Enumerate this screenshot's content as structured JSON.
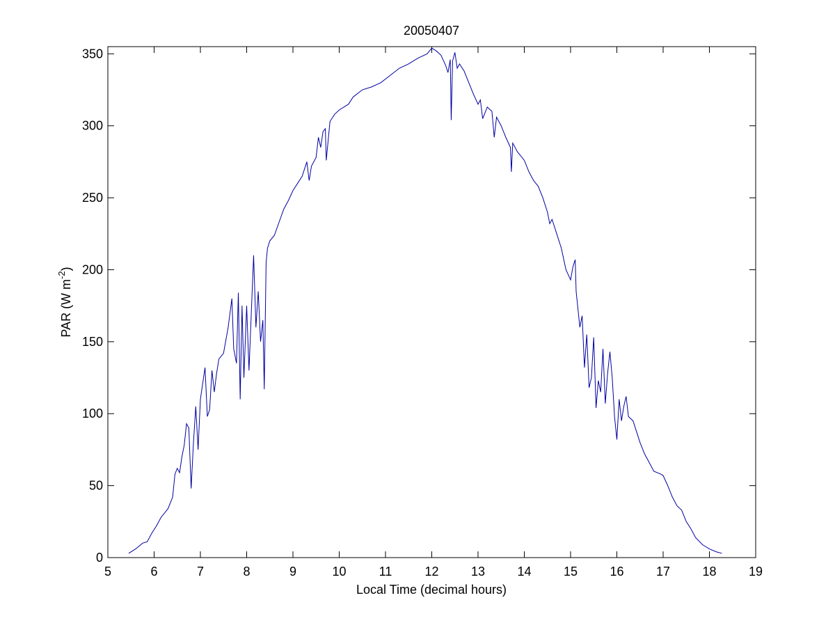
{
  "chart_data": {
    "type": "line",
    "title": "20050407",
    "xlabel": "Local Time (decimal hours)",
    "ylabel": {
      "text": "PAR (W m",
      "superscript": "-2",
      "suffix": ")"
    },
    "x": [
      5.45,
      5.6,
      5.75,
      5.85,
      5.95,
      6.05,
      6.15,
      6.3,
      6.4,
      6.45,
      6.5,
      6.55,
      6.6,
      6.65,
      6.7,
      6.75,
      6.8,
      6.85,
      6.9,
      6.95,
      7.0,
      7.1,
      7.15,
      7.2,
      7.25,
      7.3,
      7.35,
      7.4,
      7.5,
      7.6,
      7.68,
      7.72,
      7.78,
      7.82,
      7.86,
      7.9,
      7.94,
      8.0,
      8.05,
      8.1,
      8.15,
      8.2,
      8.25,
      8.3,
      8.35,
      8.38,
      8.42,
      8.45,
      8.5,
      8.6,
      8.7,
      8.8,
      8.9,
      9.0,
      9.1,
      9.2,
      9.3,
      9.35,
      9.4,
      9.5,
      9.55,
      9.6,
      9.65,
      9.7,
      9.72,
      9.8,
      9.9,
      10.0,
      10.2,
      10.3,
      10.5,
      10.7,
      10.9,
      11.1,
      11.3,
      11.5,
      11.7,
      11.9,
      12.0,
      12.1,
      12.2,
      12.3,
      12.35,
      12.4,
      12.42,
      12.45,
      12.5,
      12.55,
      12.6,
      12.7,
      12.8,
      12.9,
      13.0,
      13.05,
      13.1,
      13.2,
      13.3,
      13.35,
      13.4,
      13.5,
      13.6,
      13.7,
      13.72,
      13.75,
      13.85,
      14.0,
      14.1,
      14.2,
      14.3,
      14.4,
      14.5,
      14.55,
      14.6,
      14.7,
      14.8,
      14.9,
      15.0,
      15.05,
      15.1,
      15.12,
      15.2,
      15.25,
      15.3,
      15.35,
      15.4,
      15.45,
      15.5,
      15.55,
      15.6,
      15.65,
      15.7,
      15.75,
      15.8,
      15.85,
      15.9,
      15.95,
      16.0,
      16.05,
      16.1,
      16.15,
      16.2,
      16.25,
      16.35,
      16.5,
      16.6,
      16.7,
      16.8,
      16.95,
      17.0,
      17.1,
      17.2,
      17.3,
      17.4,
      17.5,
      17.6,
      17.7,
      17.85,
      18.0,
      18.15,
      18.27
    ],
    "series": [
      {
        "name": "PAR",
        "color": "#0000a0",
        "values": [
          3,
          6,
          10,
          11,
          17,
          22,
          28,
          34,
          42,
          58,
          62,
          59,
          70,
          78,
          93,
          90,
          48,
          80,
          105,
          75,
          110,
          132,
          98,
          103,
          130,
          115,
          128,
          138,
          142,
          160,
          180,
          145,
          135,
          184,
          110,
          175,
          125,
          175,
          130,
          170,
          210,
          160,
          185,
          150,
          165,
          117,
          205,
          215,
          220,
          224,
          233,
          242,
          248,
          255,
          260,
          265,
          275,
          262,
          272,
          278,
          292,
          285,
          296,
          298,
          276,
          303,
          308,
          311,
          315,
          320,
          325,
          327,
          330,
          335,
          340,
          343,
          347,
          350,
          354,
          352,
          349,
          342,
          337,
          346,
          304,
          345,
          351,
          340,
          343,
          338,
          330,
          322,
          315,
          318,
          305,
          313,
          310,
          292,
          306,
          300,
          292,
          285,
          268,
          288,
          282,
          276,
          268,
          262,
          258,
          250,
          240,
          232,
          235,
          225,
          215,
          200,
          193,
          202,
          207,
          185,
          160,
          168,
          132,
          155,
          118,
          125,
          153,
          104,
          123,
          115,
          145,
          107,
          128,
          143,
          125,
          98,
          82,
          110,
          95,
          105,
          112,
          98,
          95,
          80,
          72,
          66,
          60,
          58,
          57,
          50,
          42,
          36,
          33,
          25,
          20,
          14,
          9,
          6,
          4,
          3
        ]
      }
    ],
    "xlim": [
      5,
      19
    ],
    "ylim": [
      0,
      355
    ],
    "xticks": [
      5,
      6,
      7,
      8,
      9,
      10,
      11,
      12,
      13,
      14,
      15,
      16,
      17,
      18,
      19
    ],
    "yticks": [
      0,
      50,
      100,
      150,
      200,
      250,
      300,
      350
    ]
  }
}
